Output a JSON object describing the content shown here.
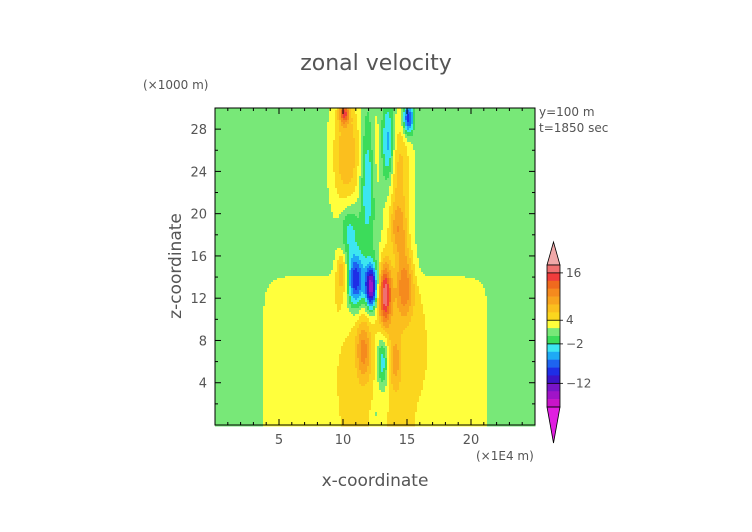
{
  "chart_data": {
    "type": "heatmap",
    "title": "zonal velocity",
    "xlabel": "x-coordinate",
    "ylabel": "z-coordinate",
    "x_units": "(×1E4 m)",
    "y_units": "(×1000 m)",
    "annotations": [
      "y=100 m",
      "t=1850 sec"
    ],
    "xlim": [
      0,
      25
    ],
    "ylim": [
      0,
      30
    ],
    "x_ticks": [
      5,
      10,
      15,
      20
    ],
    "y_ticks": [
      4,
      8,
      12,
      16,
      20,
      24,
      28
    ],
    "colorbar": {
      "tick_labels": [
        "16",
        "4",
        "−2",
        "−12"
      ],
      "levels": [
        {
          "lo": 18,
          "color": "#f0a8a8"
        },
        {
          "lo": 16,
          "color": "#f07070"
        },
        {
          "lo": 14,
          "color": "#f03c3c"
        },
        {
          "lo": 12,
          "color": "#f06a1e"
        },
        {
          "lo": 10,
          "color": "#f58a1e"
        },
        {
          "lo": 8,
          "color": "#f8a41e"
        },
        {
          "lo": 6,
          "color": "#fbbf1e"
        },
        {
          "lo": 4,
          "color": "#fbd61e"
        },
        {
          "lo": 2,
          "color": "#ffff3c"
        },
        {
          "lo": 0,
          "color": "#78e878"
        },
        {
          "lo": -2,
          "color": "#3cdc5a"
        },
        {
          "lo": -4,
          "color": "#3ce6f0"
        },
        {
          "lo": -6,
          "color": "#1eaaf5"
        },
        {
          "lo": -8,
          "color": "#1e64f0"
        },
        {
          "lo": -10,
          "color": "#1e2ee6"
        },
        {
          "lo": -12,
          "color": "#3c14c8"
        },
        {
          "lo": -14,
          "color": "#7814c8"
        },
        {
          "lo": -16,
          "color": "#a014c8"
        },
        {
          "lo": -18,
          "color": "#c814c8"
        },
        {
          "lo": -20,
          "color": "#e01ee0"
        }
      ]
    },
    "field": {
      "background": 1,
      "components": [
        {
          "kind": "plateau",
          "value": 3,
          "x0": 4.1,
          "x1": 21.0,
          "ztop": 13.5,
          "soft": 0.45
        },
        {
          "kind": "blob",
          "x": 12.6,
          "z": 26,
          "sx": 1.9,
          "sz": 5.0,
          "value": 3
        },
        {
          "kind": "blob",
          "x": 10.2,
          "z": 25.5,
          "sx": 1.1,
          "sz": 6.0,
          "value": 6
        },
        {
          "kind": "blob",
          "x": 14.4,
          "z": 23.5,
          "sx": 0.9,
          "sz": 5.5,
          "value": 5
        },
        {
          "kind": "blob",
          "x": 11.9,
          "z": 24,
          "sx": 0.55,
          "sz": 6.0,
          "value": -7
        },
        {
          "kind": "blob",
          "x": 13.5,
          "z": 26.5,
          "sx": 0.55,
          "sz": 4.0,
          "value": -9
        },
        {
          "kind": "blob",
          "x": 15.1,
          "z": 29,
          "sx": 0.4,
          "sz": 1.5,
          "value": -11
        },
        {
          "kind": "blob",
          "x": 10.1,
          "z": 29.5,
          "sx": 0.4,
          "sz": 1.0,
          "value": 10
        },
        {
          "kind": "blob",
          "x": 10.5,
          "z": 18.5,
          "sx": 0.7,
          "sz": 2.6,
          "value": -5
        },
        {
          "kind": "blob",
          "x": 11.0,
          "z": 13.5,
          "sx": 0.65,
          "sz": 2.5,
          "value": -12
        },
        {
          "kind": "blob",
          "x": 9.9,
          "z": 14.5,
          "sx": 0.45,
          "sz": 2.0,
          "value": 6
        },
        {
          "kind": "blob",
          "x": 12.2,
          "z": 13.0,
          "sx": 0.45,
          "sz": 2.0,
          "value": -18
        },
        {
          "kind": "blob",
          "x": 13.3,
          "z": 12.5,
          "sx": 0.5,
          "sz": 3.2,
          "value": 14
        },
        {
          "kind": "blob",
          "x": 14.8,
          "z": 13.5,
          "sx": 0.75,
          "sz": 3.5,
          "value": 9
        },
        {
          "kind": "blob",
          "x": 14.3,
          "z": 18.5,
          "sx": 0.7,
          "sz": 2.5,
          "value": 6
        },
        {
          "kind": "blob",
          "x": 11.6,
          "z": 7.0,
          "sx": 0.6,
          "sz": 3.0,
          "value": 7
        },
        {
          "kind": "blob",
          "x": 13.1,
          "z": 6.0,
          "sx": 0.45,
          "sz": 2.6,
          "value": -7
        },
        {
          "kind": "blob",
          "x": 14.1,
          "z": 6.0,
          "sx": 0.5,
          "sz": 3.0,
          "value": 5
        },
        {
          "kind": "blob",
          "x": 12.6,
          "z": 1.0,
          "sx": 0.3,
          "sz": 1.2,
          "value": -2
        }
      ]
    }
  }
}
